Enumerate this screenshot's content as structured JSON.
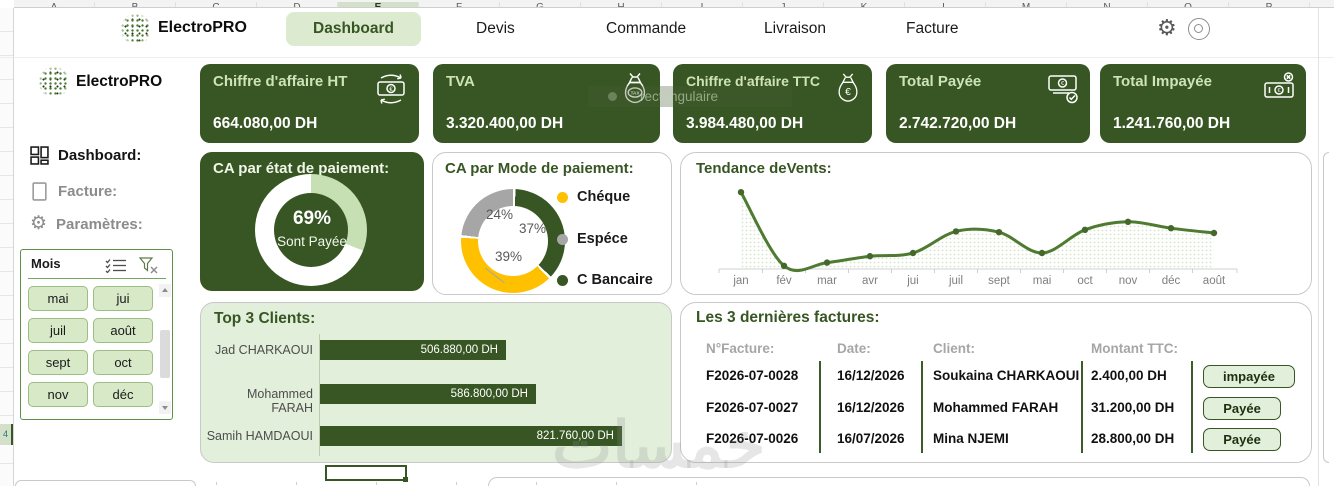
{
  "colors": {
    "accent_dark": "#375623",
    "accent_line": "#4f7a32",
    "light_green_panel": "#e2efda",
    "pill_green": "#dcebd0",
    "donut_light": "#C6E0B4",
    "donut_yellow": "#FFC000",
    "donut_gray": "#A6A6A6"
  },
  "excel": {
    "columns": [
      "A",
      "B",
      "C",
      "D",
      "E",
      "F",
      "G",
      "H",
      "I",
      "J",
      "K",
      "L",
      "M",
      "N",
      "O",
      "P"
    ],
    "selected_column": "E",
    "row_mark": "4"
  },
  "header": {
    "logo_text": "ElectroPRO",
    "tabs": [
      {
        "label": "Dashboard",
        "active": true
      },
      {
        "label": "Devis",
        "active": false
      },
      {
        "label": "Commande",
        "active": false
      },
      {
        "label": "Livraison",
        "active": false
      },
      {
        "label": "Facture",
        "active": false
      }
    ]
  },
  "sidebar": {
    "logo_text": "ElectroPRO",
    "items": [
      {
        "label": "Dashboard:",
        "active": true
      },
      {
        "label": "Facture:",
        "active": false
      },
      {
        "label": "Paramètres:",
        "active": false
      }
    ],
    "slicer": {
      "title": "Mois",
      "options": [
        "mai",
        "jui",
        "juil",
        "août",
        "sept",
        "oct",
        "nov",
        "déc"
      ]
    }
  },
  "kpis": [
    {
      "title": "Chiffre d'affaire HT",
      "value": "664.080,00 DH",
      "icon": "banknote-exchange-icon"
    },
    {
      "title": "TVA",
      "value": "3.320.400,00 DH",
      "icon": "tax-bag-icon"
    },
    {
      "title": "Chiffre d'affaire TTC",
      "value": "3.984.480,00 DH",
      "icon": "euro-bag-icon"
    },
    {
      "title": "Total Payée",
      "value": "2.742.720,00 DH",
      "icon": "banknote-check-icon"
    },
    {
      "title": "Total Impayée",
      "value": "1.241.760,00 DH",
      "icon": "banknote-cross-icon"
    }
  ],
  "chart_data": [
    {
      "id": "etat_donut",
      "type": "pie",
      "title": "CA par état de paiement:",
      "center_percent": "69%",
      "center_caption": "Sont Payée",
      "segments": [
        {
          "label": "Impayée",
          "value": 31,
          "color": "#C6E0B4"
        },
        {
          "label": "Payée",
          "value": 69,
          "color": "#FFFFFF"
        }
      ]
    },
    {
      "id": "mode_donut",
      "type": "pie",
      "title": "CA par Mode de paiement:",
      "segments": [
        {
          "label": "C Bancaire",
          "value": 37,
          "color": "#375623",
          "label_text": "37%"
        },
        {
          "label": "Chéque",
          "value": 39,
          "color": "#FFC000",
          "label_text": "39%"
        },
        {
          "label": "Espéce",
          "value": 24,
          "color": "#A6A6A6",
          "label_text": "24%"
        }
      ],
      "legend": [
        {
          "label": "Chéque",
          "color": "#FFC000"
        },
        {
          "label": "Espéce",
          "color": "#A6A6A6"
        },
        {
          "label": "C Bancaire",
          "color": "#375623"
        }
      ]
    },
    {
      "id": "tendance_line",
      "type": "line",
      "title": "Tendance deVents:",
      "x": [
        "jan",
        "fév",
        "mar",
        "avr",
        "jui",
        "juil",
        "sept",
        "mai",
        "oct",
        "nov",
        "déc",
        "août"
      ],
      "values": [
        96,
        4,
        8,
        16,
        20,
        47,
        46,
        20,
        49,
        59,
        51,
        45
      ],
      "ylim": [
        0,
        100
      ],
      "note": "relative scale, no y-axis labels shown"
    },
    {
      "id": "top3_bar",
      "type": "bar",
      "title": "Top 3 Clients:",
      "categories": [
        "Jad CHARKAOUI",
        "Mohammed FARAH",
        "Samih HAMDAOUI"
      ],
      "values": [
        506880,
        586800,
        821760
      ],
      "value_labels": [
        "506.880,00 DH",
        "586.800,00 DH",
        "821.760,00 DH"
      ],
      "unit": "DH"
    }
  ],
  "invoices": {
    "title": "Les 3 dernières factures:",
    "headers": [
      "N°Facture:",
      "Date:",
      "Client:",
      "Montant TTC:"
    ],
    "rows": [
      {
        "number": "F2026-07-0028",
        "date": "16/12/2026",
        "client": "Soukaina CHARKAOUI",
        "amount": "2.400,00 DH",
        "status": "impayée"
      },
      {
        "number": "F2026-07-0027",
        "date": "16/12/2026",
        "client": "Mohammed FARAH",
        "amount": "31.200,00 DH",
        "status": "Payée"
      },
      {
        "number": "F2026-07-0026",
        "date": "16/07/2026",
        "client": "Mina NJEMI",
        "amount": "28.800,00 DH",
        "status": "Payée"
      }
    ]
  },
  "watermarks": {
    "center_text": "خمسات",
    "snip_overlay": "rectangulaire"
  }
}
